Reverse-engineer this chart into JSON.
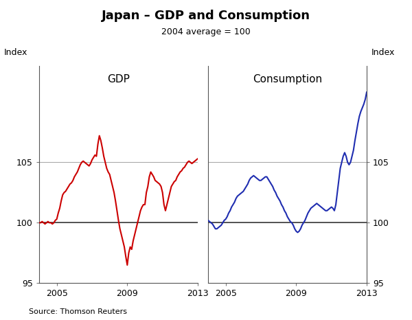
{
  "title": "Japan – GDP and Consumption",
  "subtitle": "2004 average = 100",
  "ylabel_left": "Index",
  "ylabel_right": "Index",
  "source": "Source: Thomson Reuters",
  "ylim": [
    95,
    113
  ],
  "yticks": [
    95,
    100,
    105
  ],
  "gdp_color": "#cc0000",
  "consumption_color": "#1f2db0",
  "gdp_label": "GDP",
  "consumption_label": "Consumption",
  "gdp_x": [
    2004.0,
    2004.083,
    2004.167,
    2004.25,
    2004.333,
    2004.417,
    2004.5,
    2004.583,
    2004.667,
    2004.75,
    2004.833,
    2004.917,
    2005.0,
    2005.083,
    2005.167,
    2005.25,
    2005.333,
    2005.417,
    2005.5,
    2005.583,
    2005.667,
    2005.75,
    2005.833,
    2005.917,
    2006.0,
    2006.083,
    2006.167,
    2006.25,
    2006.333,
    2006.417,
    2006.5,
    2006.583,
    2006.667,
    2006.75,
    2006.833,
    2006.917,
    2007.0,
    2007.083,
    2007.167,
    2007.25,
    2007.333,
    2007.417,
    2007.5,
    2007.583,
    2007.667,
    2007.75,
    2007.833,
    2007.917,
    2008.0,
    2008.083,
    2008.167,
    2008.25,
    2008.333,
    2008.417,
    2008.5,
    2008.583,
    2008.667,
    2008.75,
    2008.833,
    2008.917,
    2009.0,
    2009.083,
    2009.167,
    2009.25,
    2009.333,
    2009.417,
    2009.5,
    2009.583,
    2009.667,
    2009.75,
    2009.833,
    2009.917,
    2010.0,
    2010.083,
    2010.167,
    2010.25,
    2010.333,
    2010.417,
    2010.5,
    2010.583,
    2010.667,
    2010.75,
    2010.833,
    2010.917,
    2011.0,
    2011.083,
    2011.167,
    2011.25,
    2011.333,
    2011.417,
    2011.5,
    2011.583,
    2011.667,
    2011.75,
    2011.833,
    2011.917,
    2012.0,
    2012.083,
    2012.167,
    2012.25,
    2012.333,
    2012.417,
    2012.5,
    2012.583,
    2012.667,
    2012.75,
    2012.833,
    2012.917,
    2013.0
  ],
  "gdp_y": [
    100.0,
    100.0,
    100.1,
    100.0,
    99.9,
    100.0,
    100.1,
    100.0,
    100.0,
    99.9,
    100.0,
    100.2,
    100.3,
    100.8,
    101.2,
    101.8,
    102.3,
    102.5,
    102.6,
    102.8,
    103.0,
    103.2,
    103.3,
    103.5,
    103.8,
    104.0,
    104.2,
    104.5,
    104.8,
    105.0,
    105.1,
    105.0,
    104.9,
    104.8,
    104.7,
    104.9,
    105.2,
    105.4,
    105.6,
    105.5,
    106.5,
    107.2,
    106.8,
    106.2,
    105.5,
    105.0,
    104.5,
    104.2,
    104.0,
    103.5,
    103.0,
    102.5,
    101.8,
    101.0,
    100.2,
    99.5,
    99.0,
    98.5,
    98.0,
    97.2,
    96.5,
    97.5,
    98.0,
    97.8,
    98.5,
    99.0,
    99.5,
    100.0,
    100.5,
    101.0,
    101.3,
    101.5,
    101.5,
    102.5,
    103.0,
    103.8,
    104.2,
    104.0,
    103.8,
    103.5,
    103.4,
    103.3,
    103.2,
    103.0,
    102.5,
    101.5,
    101.0,
    101.5,
    102.0,
    102.5,
    103.0,
    103.2,
    103.4,
    103.5,
    103.8,
    104.0,
    104.2,
    104.3,
    104.5,
    104.6,
    104.8,
    105.0,
    105.1,
    105.0,
    104.9,
    105.0,
    105.1,
    105.2,
    105.3
  ],
  "cons_x": [
    2004.0,
    2004.083,
    2004.167,
    2004.25,
    2004.333,
    2004.417,
    2004.5,
    2004.583,
    2004.667,
    2004.75,
    2004.833,
    2004.917,
    2005.0,
    2005.083,
    2005.167,
    2005.25,
    2005.333,
    2005.417,
    2005.5,
    2005.583,
    2005.667,
    2005.75,
    2005.833,
    2005.917,
    2006.0,
    2006.083,
    2006.167,
    2006.25,
    2006.333,
    2006.417,
    2006.5,
    2006.583,
    2006.667,
    2006.75,
    2006.833,
    2006.917,
    2007.0,
    2007.083,
    2007.167,
    2007.25,
    2007.333,
    2007.417,
    2007.5,
    2007.583,
    2007.667,
    2007.75,
    2007.833,
    2007.917,
    2008.0,
    2008.083,
    2008.167,
    2008.25,
    2008.333,
    2008.417,
    2008.5,
    2008.583,
    2008.667,
    2008.75,
    2008.833,
    2008.917,
    2009.0,
    2009.083,
    2009.167,
    2009.25,
    2009.333,
    2009.417,
    2009.5,
    2009.583,
    2009.667,
    2009.75,
    2009.833,
    2009.917,
    2010.0,
    2010.083,
    2010.167,
    2010.25,
    2010.333,
    2010.417,
    2010.5,
    2010.583,
    2010.667,
    2010.75,
    2010.833,
    2010.917,
    2011.0,
    2011.083,
    2011.167,
    2011.25,
    2011.333,
    2011.417,
    2011.5,
    2011.583,
    2011.667,
    2011.75,
    2011.833,
    2011.917,
    2012.0,
    2012.083,
    2012.167,
    2012.25,
    2012.333,
    2012.417,
    2012.5,
    2012.583,
    2012.667,
    2012.75,
    2012.833,
    2012.917,
    2013.0
  ],
  "cons_y": [
    100.2,
    100.1,
    100.0,
    99.9,
    99.7,
    99.5,
    99.5,
    99.6,
    99.7,
    99.8,
    100.0,
    100.2,
    100.3,
    100.5,
    100.8,
    101.0,
    101.3,
    101.5,
    101.7,
    102.0,
    102.2,
    102.3,
    102.4,
    102.5,
    102.6,
    102.8,
    103.0,
    103.2,
    103.5,
    103.7,
    103.8,
    103.9,
    103.8,
    103.7,
    103.6,
    103.5,
    103.5,
    103.6,
    103.7,
    103.8,
    103.8,
    103.6,
    103.4,
    103.2,
    103.0,
    102.7,
    102.5,
    102.2,
    102.0,
    101.8,
    101.5,
    101.3,
    101.0,
    100.8,
    100.5,
    100.3,
    100.1,
    100.0,
    99.8,
    99.5,
    99.3,
    99.2,
    99.3,
    99.5,
    99.8,
    100.0,
    100.2,
    100.5,
    100.8,
    101.0,
    101.2,
    101.3,
    101.4,
    101.5,
    101.6,
    101.5,
    101.4,
    101.3,
    101.2,
    101.1,
    101.0,
    101.0,
    101.1,
    101.2,
    101.3,
    101.2,
    101.0,
    101.5,
    102.5,
    103.5,
    104.5,
    105.0,
    105.5,
    105.8,
    105.5,
    105.0,
    104.8,
    105.0,
    105.5,
    106.0,
    106.8,
    107.5,
    108.2,
    108.8,
    109.2,
    109.5,
    109.8,
    110.2,
    110.8
  ]
}
